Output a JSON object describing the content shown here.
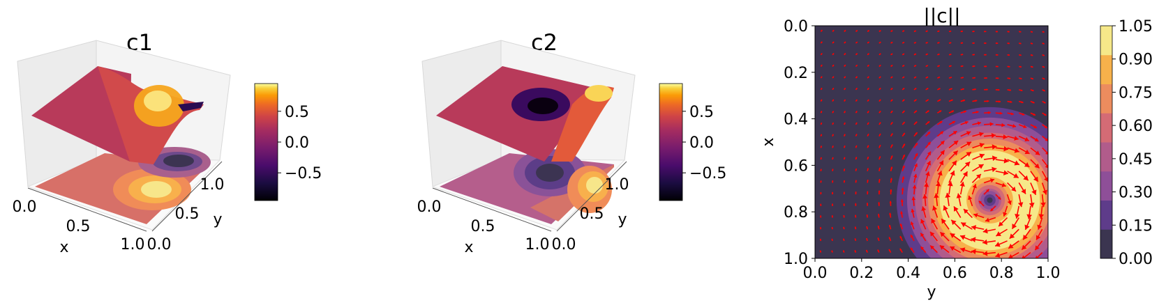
{
  "chart_data": [
    {
      "type": "surface3d",
      "title": "c1",
      "xlabel": "x",
      "ylabel": "y",
      "xticks": [
        "0.0",
        "0.5",
        "1.0"
      ],
      "yticks": [
        "0.0",
        "0.5",
        "1.0"
      ],
      "xlim": [
        0,
        1
      ],
      "ylim": [
        0,
        1
      ],
      "colormap": "inferno",
      "colorbar": {
        "ticks": [
          "0.5",
          "0.0",
          "−0.5"
        ],
        "tick_values": [
          0.5,
          0.0,
          -0.5
        ],
        "range": [
          -0.95,
          0.95
        ]
      },
      "extrema": [
        {
          "x": 0.75,
          "y": 0.75,
          "value": -0.9
        },
        {
          "x": 0.65,
          "y": 0.4,
          "value": 0.9
        }
      ]
    },
    {
      "type": "surface3d",
      "title": "c2",
      "xlabel": "x",
      "ylabel": "y",
      "xticks": [
        "0.0",
        "0.5",
        "1.0"
      ],
      "yticks": [
        "0.0",
        "0.5",
        "1.0"
      ],
      "xlim": [
        0,
        1
      ],
      "ylim": [
        0,
        1
      ],
      "colormap": "inferno",
      "colorbar": {
        "ticks": [
          "0.5",
          "0.0",
          "−0.5"
        ],
        "tick_values": [
          0.5,
          0.0,
          -0.5
        ],
        "range": [
          -0.95,
          0.95
        ]
      },
      "extrema": [
        {
          "x": 0.45,
          "y": 0.75,
          "value": -0.9
        },
        {
          "x": 0.85,
          "y": 0.45,
          "value": 0.9
        }
      ]
    },
    {
      "type": "heatmap",
      "title": "||c||",
      "xlabel": "y",
      "ylabel": "x",
      "xticks": [
        "0.0",
        "0.2",
        "0.4",
        "0.6",
        "0.8",
        "1.0"
      ],
      "yticks": [
        "0.0",
        "0.2",
        "0.4",
        "0.6",
        "0.8",
        "1.0"
      ],
      "xlim": [
        0,
        1
      ],
      "ylim": [
        1,
        0
      ],
      "vortex_center": {
        "x": 0.75,
        "y": 0.75
      },
      "levels": [
        0.0,
        0.15,
        0.3,
        0.45,
        0.6,
        0.75,
        0.9,
        1.05
      ],
      "level_colors": [
        "#3b3550",
        "#5e3c8a",
        "#8e4f98",
        "#b15c8b",
        "#d46b75",
        "#ec8c5e",
        "#f7b14b",
        "#f6e889"
      ],
      "colorbar_ticks": [
        "1.05",
        "0.90",
        "0.75",
        "0.60",
        "0.45",
        "0.30",
        "0.15",
        "0.00"
      ],
      "arrow_color": "#ff0000"
    }
  ]
}
